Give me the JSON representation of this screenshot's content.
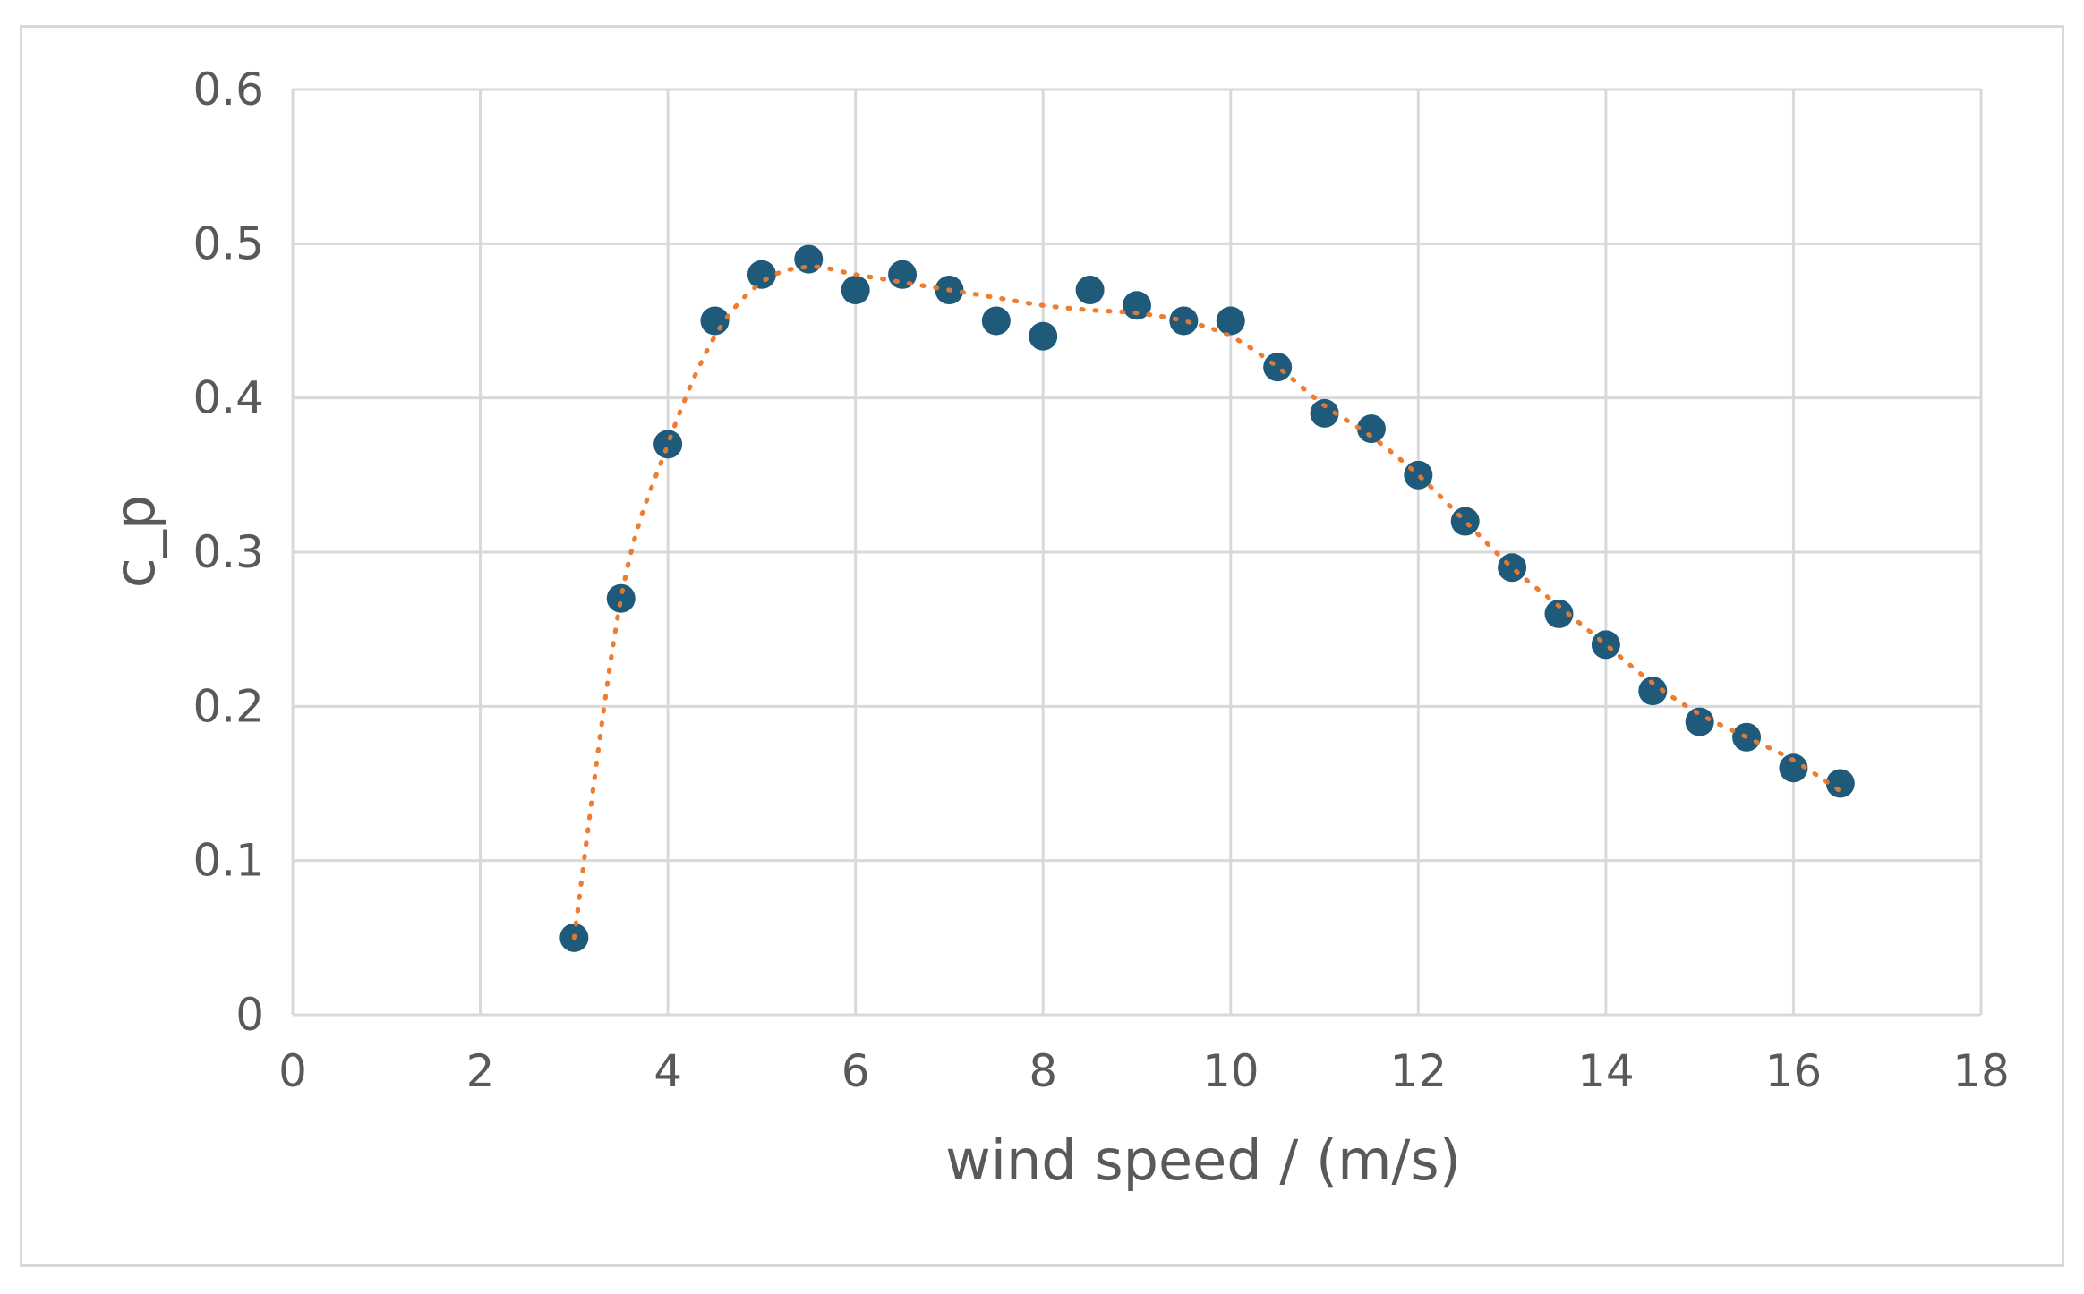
{
  "chart_data": {
    "type": "scatter",
    "title": "",
    "xlabel": "wind speed / (m/s)",
    "ylabel": "c_p",
    "xlim": [
      0,
      18
    ],
    "ylim": [
      0,
      0.6
    ],
    "x_ticks": [
      "0",
      "2",
      "4",
      "6",
      "8",
      "10",
      "12",
      "14",
      "16",
      "18"
    ],
    "y_ticks": [
      "0",
      "0.1",
      "0.2",
      "0.3",
      "0.4",
      "0.5",
      "0.6"
    ],
    "grid": true,
    "legend": "none",
    "colors": {
      "marker": "#1f5a7a",
      "trendline": "#ed7d31",
      "grid": "#d9d9d9",
      "text": "#595959"
    },
    "series": [
      {
        "x": [
          3,
          3.5,
          4,
          4.5,
          5,
          5.5,
          6,
          6.5,
          7,
          7.5,
          8,
          8.5,
          9,
          9.5,
          10,
          10.5,
          11,
          11.5,
          12,
          12.5,
          13,
          13.5,
          14,
          14.5,
          15,
          15.5,
          16,
          16.5
        ],
        "y": [
          0.05,
          0.27,
          0.37,
          0.45,
          0.48,
          0.49,
          0.47,
          0.48,
          0.47,
          0.45,
          0.44,
          0.47,
          0.46,
          0.45,
          0.45,
          0.42,
          0.39,
          0.38,
          0.35,
          0.32,
          0.29,
          0.26,
          0.24,
          0.21,
          0.19,
          0.18,
          0.16,
          0.15
        ]
      }
    ],
    "trendline": {
      "style": "dotted",
      "x": [
        3,
        3.5,
        4,
        4.5,
        5,
        5.5,
        6,
        6.5,
        7,
        7.5,
        8,
        8.5,
        9,
        9.5,
        10,
        10.5,
        11,
        11.5,
        12,
        12.5,
        13,
        13.5,
        14,
        14.5,
        15,
        15.5,
        16,
        16.5
      ],
      "y": [
        0.05,
        0.27,
        0.37,
        0.44,
        0.475,
        0.485,
        0.48,
        0.475,
        0.47,
        0.465,
        0.46,
        0.457,
        0.455,
        0.45,
        0.44,
        0.42,
        0.395,
        0.375,
        0.35,
        0.32,
        0.29,
        0.265,
        0.24,
        0.215,
        0.195,
        0.18,
        0.165,
        0.145
      ]
    }
  }
}
